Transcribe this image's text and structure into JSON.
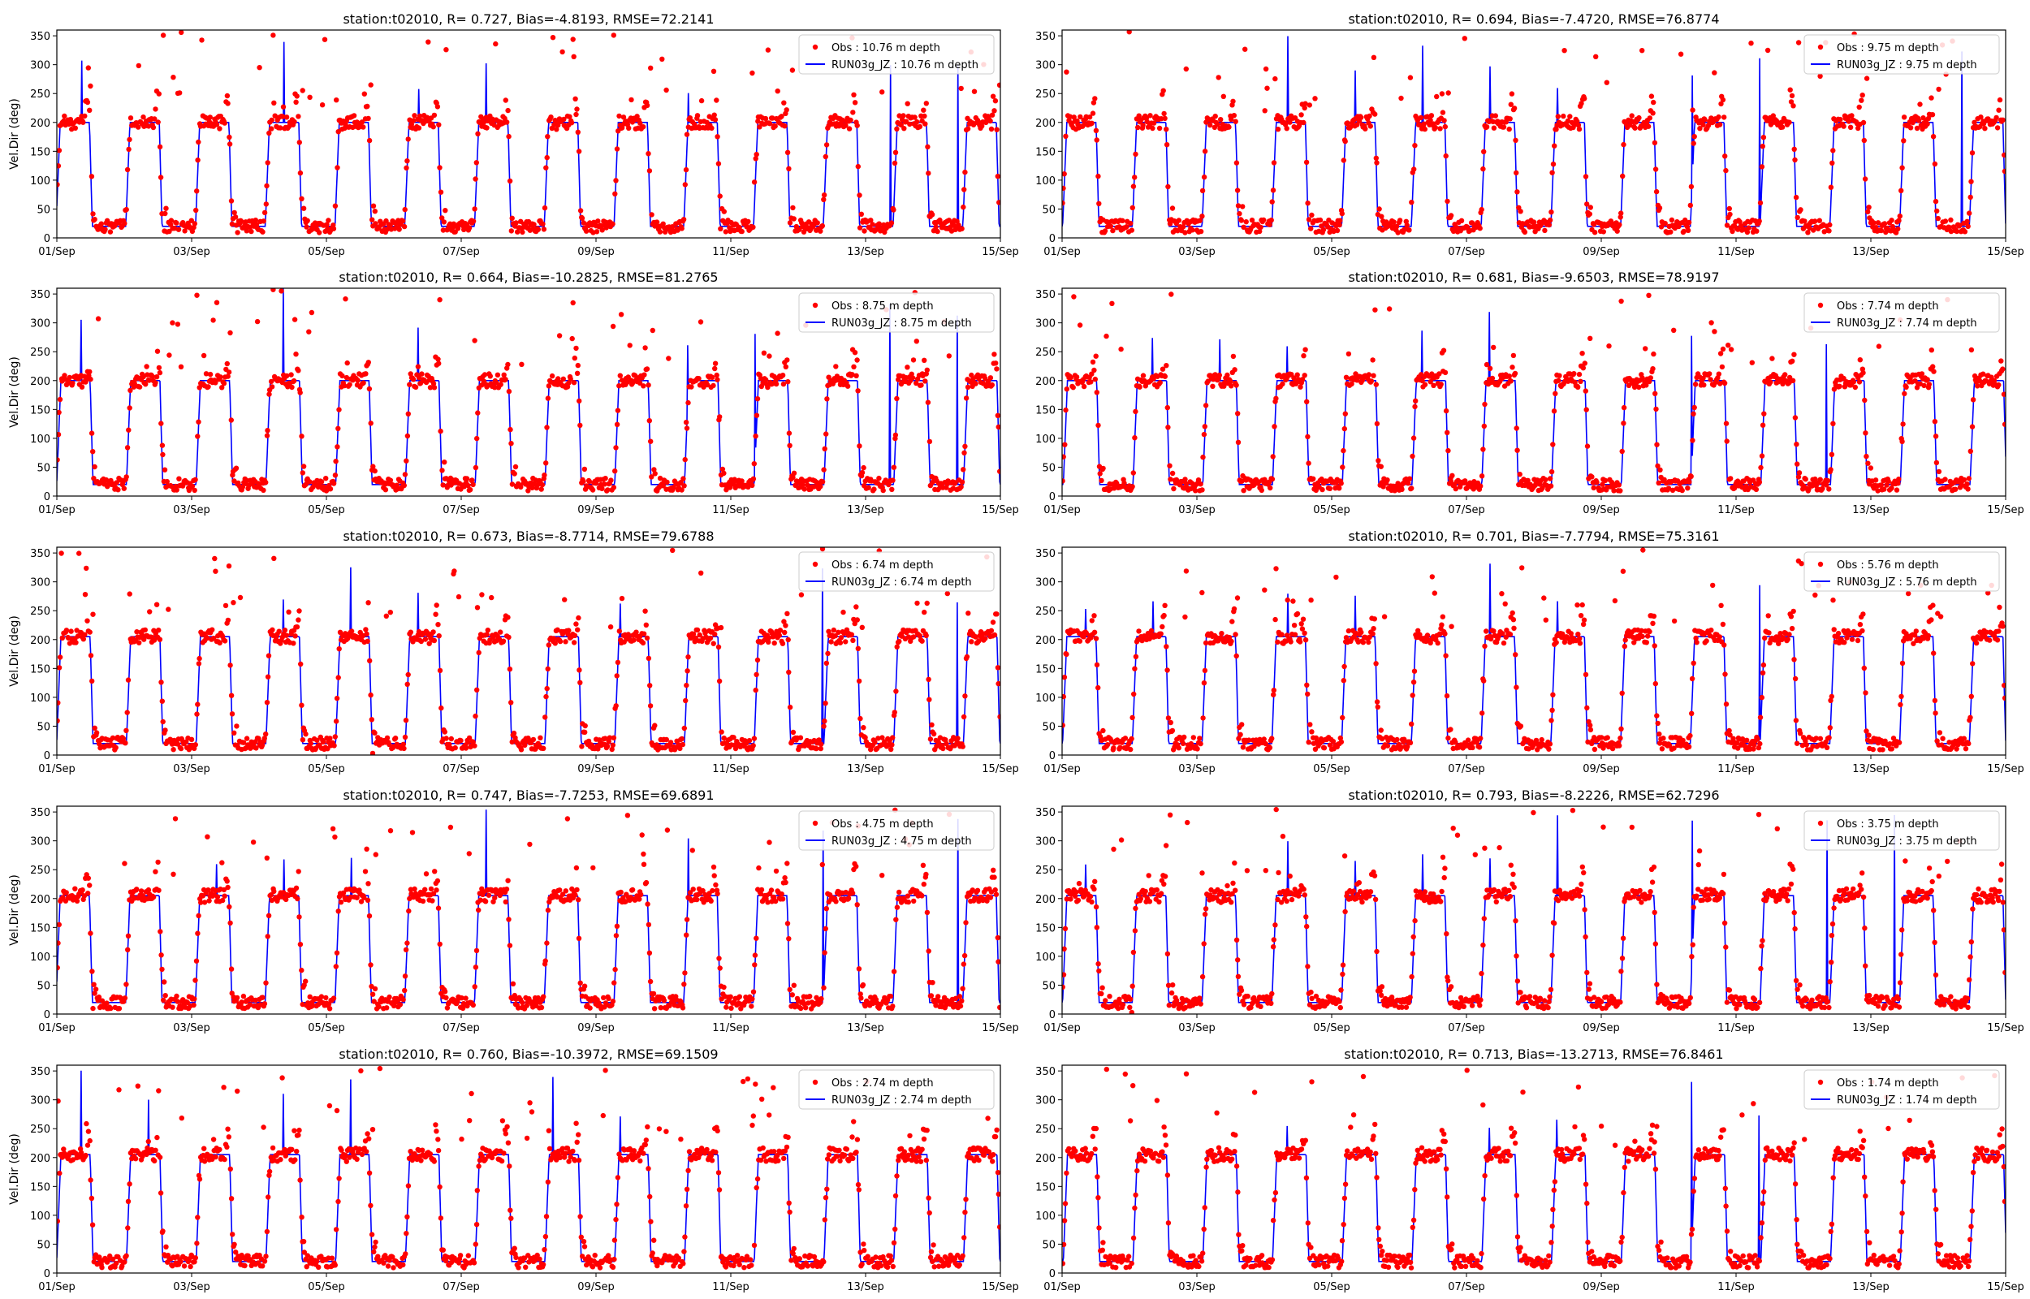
{
  "figure": {
    "layout": "5 rows x 2 columns of time-series panels",
    "colors": {
      "obs": "#ff0000",
      "model": "#0000ff",
      "axis": "#000000",
      "background": "#ffffff"
    }
  },
  "chart_data": [
    {
      "type": "scatter+line",
      "title": "station:t02010, R= 0.727, Bias=-4.8193, RMSE=72.2141",
      "ylabel": "Vel.Dir (deg)",
      "ylim": [
        0,
        360
      ],
      "yticks": [
        0,
        50,
        100,
        150,
        200,
        250,
        300,
        350
      ],
      "xlabels": [
        "01/Sep",
        "03/Sep",
        "05/Sep",
        "07/Sep",
        "09/Sep",
        "11/Sep",
        "13/Sep",
        "15/Sep"
      ],
      "xlim_days": [
        0,
        14
      ],
      "legend": [
        "Obs : 10.76 m depth",
        "RUN03g_JZ : 10.76 m depth"
      ],
      "legend_loc": "upper right",
      "series": [
        {
          "name": "Obs : 10.76 m depth",
          "style": "red dots",
          "high": 200,
          "low": 20,
          "period_days": 1.035,
          "phase": 0.05
        },
        {
          "name": "RUN03g_JZ : 10.76 m depth",
          "style": "blue line",
          "high": 200,
          "low": 20
        }
      ]
    },
    {
      "type": "scatter+line",
      "title": "station:t02010, R= 0.694, Bias=-7.4720, RMSE=76.8774",
      "ylabel": "",
      "ylim": [
        0,
        360
      ],
      "yticks": [
        0,
        50,
        100,
        150,
        200,
        250,
        300,
        350
      ],
      "xlabels": [
        "01/Sep",
        "03/Sep",
        "05/Sep",
        "07/Sep",
        "09/Sep",
        "11/Sep",
        "13/Sep",
        "15/Sep"
      ],
      "xlim_days": [
        0,
        14
      ],
      "legend": [
        "Obs : 9.75 m depth",
        "RUN03g_JZ : 9.75 m depth"
      ],
      "legend_loc": "upper right",
      "series": [
        {
          "name": "Obs : 9.75 m depth",
          "style": "red dots",
          "high": 200,
          "low": 20,
          "period_days": 1.035,
          "phase": 0.07
        },
        {
          "name": "RUN03g_JZ : 9.75 m depth",
          "style": "blue line",
          "high": 200,
          "low": 20
        }
      ]
    },
    {
      "type": "scatter+line",
      "title": "station:t02010, R= 0.664, Bias=-10.2825, RMSE=81.2765",
      "ylabel": "Vel.Dir (deg)",
      "ylim": [
        0,
        360
      ],
      "yticks": [
        0,
        50,
        100,
        150,
        200,
        250,
        300,
        350
      ],
      "xlabels": [
        "01/Sep",
        "03/Sep",
        "05/Sep",
        "07/Sep",
        "09/Sep",
        "11/Sep",
        "13/Sep",
        "15/Sep"
      ],
      "xlim_days": [
        0,
        14
      ],
      "legend": [
        "Obs : 8.75 m depth",
        "RUN03g_JZ : 8.75 m depth"
      ],
      "legend_loc": "upper right",
      "series": [
        {
          "name": "Obs : 8.75 m depth",
          "style": "red dots",
          "high": 200,
          "low": 20,
          "period_days": 1.035,
          "phase": 0.06
        },
        {
          "name": "RUN03g_JZ : 8.75 m depth",
          "style": "blue line",
          "high": 200,
          "low": 20
        }
      ]
    },
    {
      "type": "scatter+line",
      "title": "station:t02010, R= 0.681, Bias=-9.6503, RMSE=78.9197",
      "ylabel": "",
      "ylim": [
        0,
        360
      ],
      "yticks": [
        0,
        50,
        100,
        150,
        200,
        250,
        300,
        350
      ],
      "xlabels": [
        "01/Sep",
        "03/Sep",
        "05/Sep",
        "07/Sep",
        "09/Sep",
        "11/Sep",
        "13/Sep",
        "15/Sep"
      ],
      "xlim_days": [
        0,
        14
      ],
      "legend": [
        "Obs : 7.74 m depth",
        "RUN03g_JZ : 7.74 m depth"
      ],
      "legend_loc": "upper right",
      "series": [
        {
          "name": "Obs : 7.74 m depth",
          "style": "red dots",
          "high": 200,
          "low": 20,
          "period_days": 1.035,
          "phase": 0.08
        },
        {
          "name": "RUN03g_JZ : 7.74 m depth",
          "style": "blue line",
          "high": 200,
          "low": 20
        }
      ]
    },
    {
      "type": "scatter+line",
      "title": "station:t02010, R= 0.673, Bias=-8.7714, RMSE=79.6788",
      "ylabel": "Vel.Dir (deg)",
      "ylim": [
        0,
        360
      ],
      "yticks": [
        0,
        50,
        100,
        150,
        200,
        250,
        300,
        350
      ],
      "xlabels": [
        "01/Sep",
        "03/Sep",
        "05/Sep",
        "07/Sep",
        "09/Sep",
        "11/Sep",
        "13/Sep",
        "15/Sep"
      ],
      "xlim_days": [
        0,
        14
      ],
      "legend": [
        "Obs : 6.74 m depth",
        "RUN03g_JZ : 6.74 m depth"
      ],
      "legend_loc": "upper right",
      "series": [
        {
          "name": "Obs : 6.74 m depth",
          "style": "red dots",
          "high": 205,
          "low": 20,
          "period_days": 1.035,
          "phase": 0.06
        },
        {
          "name": "RUN03g_JZ : 6.74 m depth",
          "style": "blue line",
          "high": 205,
          "low": 20
        }
      ]
    },
    {
      "type": "scatter+line",
      "title": "station:t02010, R= 0.701, Bias=-7.7794, RMSE=75.3161",
      "ylabel": "",
      "ylim": [
        0,
        360
      ],
      "yticks": [
        0,
        50,
        100,
        150,
        200,
        250,
        300,
        350
      ],
      "xlabels": [
        "01/Sep",
        "03/Sep",
        "05/Sep",
        "07/Sep",
        "09/Sep",
        "11/Sep",
        "13/Sep",
        "15/Sep"
      ],
      "xlim_days": [
        0,
        14
      ],
      "legend": [
        "Obs : 5.76 m depth",
        "RUN03g_JZ : 5.76 m depth"
      ],
      "legend_loc": "upper right",
      "series": [
        {
          "name": "Obs : 5.76 m depth",
          "style": "red dots",
          "high": 205,
          "low": 20,
          "period_days": 1.035,
          "phase": 0.07
        },
        {
          "name": "RUN03g_JZ : 5.76 m depth",
          "style": "blue line",
          "high": 205,
          "low": 20
        }
      ]
    },
    {
      "type": "scatter+line",
      "title": "station:t02010, R= 0.747, Bias=-7.7253, RMSE=69.6891",
      "ylabel": "Vel.Dir (deg)",
      "ylim": [
        0,
        360
      ],
      "yticks": [
        0,
        50,
        100,
        150,
        200,
        250,
        300,
        350
      ],
      "xlabels": [
        "01/Sep",
        "03/Sep",
        "05/Sep",
        "07/Sep",
        "09/Sep",
        "11/Sep",
        "13/Sep",
        "15/Sep"
      ],
      "xlim_days": [
        0,
        14
      ],
      "legend": [
        "Obs : 4.75 m depth",
        "RUN03g_JZ : 4.75 m depth"
      ],
      "legend_loc": "upper right",
      "series": [
        {
          "name": "Obs : 4.75 m depth",
          "style": "red dots",
          "high": 205,
          "low": 20,
          "period_days": 1.035,
          "phase": 0.05
        },
        {
          "name": "RUN03g_JZ : 4.75 m depth",
          "style": "blue line",
          "high": 205,
          "low": 20
        }
      ]
    },
    {
      "type": "scatter+line",
      "title": "station:t02010, R= 0.793, Bias=-8.2226, RMSE=62.7296",
      "ylabel": "",
      "ylim": [
        0,
        360
      ],
      "yticks": [
        0,
        50,
        100,
        150,
        200,
        250,
        300,
        350
      ],
      "xlabels": [
        "01/Sep",
        "03/Sep",
        "05/Sep",
        "07/Sep",
        "09/Sep",
        "11/Sep",
        "13/Sep",
        "15/Sep"
      ],
      "xlim_days": [
        0,
        14
      ],
      "legend": [
        "Obs : 3.75 m depth",
        "RUN03g_JZ : 3.75 m depth"
      ],
      "legend_loc": "upper right",
      "series": [
        {
          "name": "Obs : 3.75 m depth",
          "style": "red dots",
          "high": 205,
          "low": 20,
          "period_days": 1.035,
          "phase": 0.07
        },
        {
          "name": "RUN03g_JZ : 3.75 m depth",
          "style": "blue line",
          "high": 205,
          "low": 20
        }
      ]
    },
    {
      "type": "scatter+line",
      "title": "station:t02010, R= 0.760, Bias=-10.3972, RMSE=69.1509",
      "ylabel": "Vel.Dir (deg)",
      "ylim": [
        0,
        360
      ],
      "yticks": [
        0,
        50,
        100,
        150,
        200,
        250,
        300,
        350
      ],
      "xlabels": [
        "01/Sep",
        "03/Sep",
        "05/Sep",
        "07/Sep",
        "09/Sep",
        "11/Sep",
        "13/Sep",
        "15/Sep"
      ],
      "xlim_days": [
        0,
        14
      ],
      "legend": [
        "Obs : 2.74 m depth",
        "RUN03g_JZ : 2.74 m depth"
      ],
      "legend_loc": "upper right",
      "series": [
        {
          "name": "Obs : 2.74 m depth",
          "style": "red dots",
          "high": 205,
          "low": 20,
          "period_days": 1.035,
          "phase": 0.06
        },
        {
          "name": "RUN03g_JZ : 2.74 m depth",
          "style": "blue line",
          "high": 205,
          "low": 20
        }
      ]
    },
    {
      "type": "scatter+line",
      "title": "station:t02010, R= 0.713, Bias=-13.2713, RMSE=76.8461",
      "ylabel": "",
      "ylim": [
        0,
        360
      ],
      "yticks": [
        0,
        50,
        100,
        150,
        200,
        250,
        300,
        350
      ],
      "xlabels": [
        "01/Sep",
        "03/Sep",
        "05/Sep",
        "07/Sep",
        "09/Sep",
        "11/Sep",
        "13/Sep",
        "15/Sep"
      ],
      "xlim_days": [
        0,
        14
      ],
      "legend": [
        "Obs : 1.74 m depth",
        "RUN03g_JZ : 1.74 m depth"
      ],
      "legend_loc": "upper right",
      "series": [
        {
          "name": "Obs : 1.74 m depth",
          "style": "red dots",
          "high": 205,
          "low": 20,
          "period_days": 1.035,
          "phase": 0.08
        },
        {
          "name": "RUN03g_JZ : 1.74 m depth",
          "style": "blue line",
          "high": 205,
          "low": 20
        }
      ]
    }
  ]
}
